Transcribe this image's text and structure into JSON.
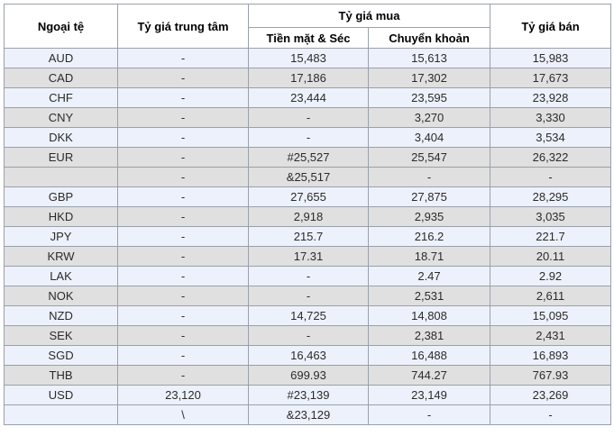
{
  "table": {
    "columns": {
      "currency": "Ngoại tệ",
      "central_rate": "Tỷ giá trung tâm",
      "buy_rate_group": "Tỷ giá mua",
      "buy_cash": "Tiền mặt & Séc",
      "buy_transfer": "Chuyển khoản",
      "sell_rate": "Tỷ giá bán"
    },
    "rows": [
      {
        "currency": "AUD",
        "central": "-",
        "cash": "15,483",
        "transfer": "15,613",
        "sell": "15,983",
        "shade": "blue"
      },
      {
        "currency": "CAD",
        "central": "-",
        "cash": "17,186",
        "transfer": "17,302",
        "sell": "17,673",
        "shade": "gray"
      },
      {
        "currency": "CHF",
        "central": "-",
        "cash": "23,444",
        "transfer": "23,595",
        "sell": "23,928",
        "shade": "blue"
      },
      {
        "currency": "CNY",
        "central": "-",
        "cash": "-",
        "transfer": "3,270",
        "sell": "3,330",
        "shade": "gray"
      },
      {
        "currency": "DKK",
        "central": "-",
        "cash": "-",
        "transfer": "3,404",
        "sell": "3,534",
        "shade": "blue"
      },
      {
        "currency": "EUR",
        "central": "-",
        "cash": "#25,527",
        "transfer": "25,547",
        "sell": "26,322",
        "shade": "gray"
      },
      {
        "currency": "",
        "central": "-",
        "cash": "&25,517",
        "transfer": "-",
        "sell": "-",
        "shade": "gray"
      },
      {
        "currency": "GBP",
        "central": "-",
        "cash": "27,655",
        "transfer": "27,875",
        "sell": "28,295",
        "shade": "blue"
      },
      {
        "currency": "HKD",
        "central": "-",
        "cash": "2,918",
        "transfer": "2,935",
        "sell": "3,035",
        "shade": "gray"
      },
      {
        "currency": "JPY",
        "central": "-",
        "cash": "215.7",
        "transfer": "216.2",
        "sell": "221.7",
        "shade": "blue"
      },
      {
        "currency": "KRW",
        "central": "-",
        "cash": "17.31",
        "transfer": "18.71",
        "sell": "20.11",
        "shade": "gray"
      },
      {
        "currency": "LAK",
        "central": "-",
        "cash": "-",
        "transfer": "2.47",
        "sell": "2.92",
        "shade": "blue"
      },
      {
        "currency": "NOK",
        "central": "-",
        "cash": "-",
        "transfer": "2,531",
        "sell": "2,611",
        "shade": "gray"
      },
      {
        "currency": "NZD",
        "central": "-",
        "cash": "14,725",
        "transfer": "14,808",
        "sell": "15,095",
        "shade": "blue"
      },
      {
        "currency": "SEK",
        "central": "-",
        "cash": "-",
        "transfer": "2,381",
        "sell": "2,431",
        "shade": "gray"
      },
      {
        "currency": "SGD",
        "central": "-",
        "cash": "16,463",
        "transfer": "16,488",
        "sell": "16,893",
        "shade": "blue"
      },
      {
        "currency": "THB",
        "central": "-",
        "cash": "699.93",
        "transfer": "744.27",
        "sell": "767.93",
        "shade": "gray"
      },
      {
        "currency": "USD",
        "central": "23,120",
        "cash": "#23,139",
        "transfer": "23,149",
        "sell": "23,269",
        "shade": "blue"
      },
      {
        "currency": "",
        "central": "\\",
        "cash": "&23,129",
        "transfer": "-",
        "sell": "-",
        "shade": "blue"
      }
    ],
    "colors": {
      "row_blue": "#edf1fb",
      "row_gray": "#e0e0e0",
      "border": "#9aa0aa",
      "header_bg": "#ffffff",
      "text": "#2b2b2b"
    }
  }
}
